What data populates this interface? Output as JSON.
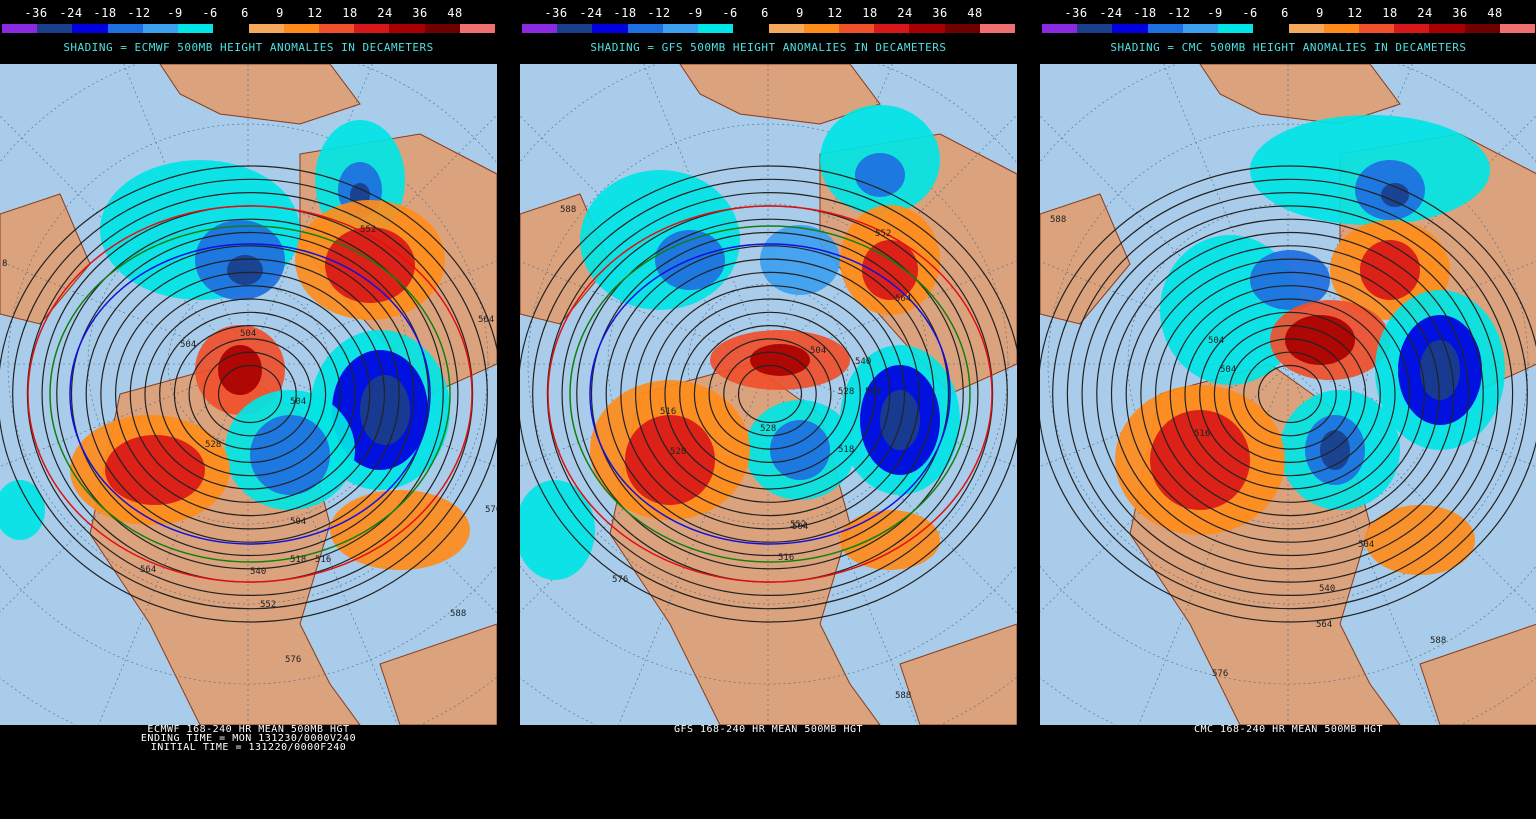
{
  "scale": {
    "labels": [
      "-36",
      "-24",
      "-18",
      "-12",
      "-9",
      "-6",
      "6",
      "9",
      "12",
      "18",
      "24",
      "36",
      "48"
    ],
    "colors": [
      "#8a2be2",
      "#1a3f8a",
      "#0000e0",
      "#1e6fe0",
      "#3ea0f0",
      "#00e5e5",
      "#000000",
      "#f5a95c",
      "#ff8c1a",
      "#f0502a",
      "#d81818",
      "#a80000",
      "#6e0000",
      "#f07070"
    ]
  },
  "panels": [
    {
      "shade_title": "SHADING = ECMWF 500MB HEIGHT ANOMALIES IN DECAMETERS",
      "footer": [
        "ECMWF 168-240 HR MEAN 500MB HGT",
        "ENDING TIME = MON 131230/0000V240",
        "INITIAL TIME = 131220/0000F240"
      ],
      "contour_labels": [
        "552",
        "504",
        "504",
        "504",
        "528",
        "504",
        "516",
        "518",
        "540",
        "552",
        "564",
        "576",
        "588",
        "564",
        "576",
        "8"
      ]
    },
    {
      "shade_title": "SHADING = GFS 500MB HEIGHT ANOMALIES IN DECAMETERS",
      "footer": [
        "GFS 168-240 HR MEAN 500MB HGT"
      ],
      "contour_labels": [
        "588",
        "552",
        "564",
        "504",
        "540",
        "528",
        "528",
        "516",
        "528",
        "552",
        "564",
        "504",
        "516",
        "576",
        "588",
        "518"
      ]
    },
    {
      "shade_title": "SHADING = CMC 500MB HEIGHT ANOMALIES IN DECAMETERS",
      "footer": [
        "CMC 168-240 HR MEAN 500MB HGT"
      ],
      "contour_labels": [
        "588",
        "504",
        "504",
        "516",
        "504",
        "540",
        "564",
        "576",
        "588"
      ]
    }
  ],
  "colors": {
    "ocean": "#a8cce9",
    "land": "#dba27e",
    "border": "#8b3a1a",
    "contour": "#222222",
    "grid": "#4a6a8a"
  }
}
